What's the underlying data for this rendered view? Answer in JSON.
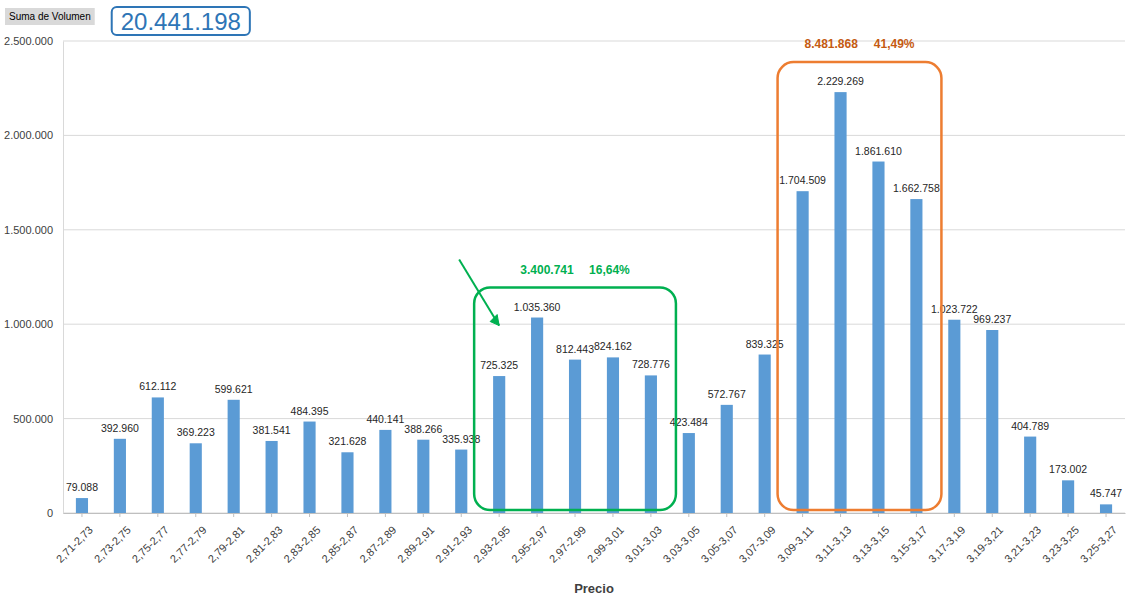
{
  "chart_data": {
    "type": "bar",
    "field_label": "Suma de Volumen",
    "title": "20.441.198",
    "x_label": "Precio",
    "categories": [
      "2,71-2,73",
      "2,73-2,75",
      "2,75-2,77",
      "2,77-2,79",
      "2,79-2,81",
      "2,81-2,83",
      "2,83-2,85",
      "2,85-2,87",
      "2,87-2,89",
      "2,89-2,91",
      "2,91-2,93",
      "2,93-2,95",
      "2,95-2,97",
      "2,97-2,99",
      "2,99-3,01",
      "3,01-3,03",
      "3,03-3,05",
      "3,05-3,07",
      "3,07-3,09",
      "3,09-3,11",
      "3,11-3,13",
      "3,13-3,15",
      "3,15-3,17",
      "3,17-3,19",
      "3,19-3,21",
      "3,21-3,23",
      "3,23-3,25",
      "3,25-3,27"
    ],
    "values": [
      79088,
      392960,
      612112,
      369223,
      599621,
      381541,
      484395,
      321628,
      440141,
      388266,
      335938,
      725325,
      1035360,
      812443,
      824162,
      728776,
      423484,
      572767,
      839325,
      1704509,
      2229269,
      1861610,
      1662758,
      1023722,
      969237,
      404789,
      173002,
      45747
    ],
    "value_labels": [
      "79.088",
      "392.960",
      "612.112",
      "369.223",
      "599.621",
      "381.541",
      "484.395",
      "321.628",
      "440.141",
      "388.266",
      "335.938",
      "725.325",
      "1.035.360",
      "812.443",
      "824.162",
      "728.776",
      "423.484",
      "572.767",
      "839.325",
      "1.704.509",
      "2.229.269",
      "1.861.610",
      "1.662.758",
      "1.023.722",
      "969.237",
      "404.789",
      "173.002",
      "45.747"
    ],
    "color": "#5b9bd5",
    "ylim": [
      0,
      2500000
    ],
    "yticks": [
      0,
      {
        "value": 500000,
        "label": "500.000"
      },
      {
        "value": 1000000,
        "label": "1.000.000"
      },
      {
        "value": 1500000,
        "label": "1.500.000"
      },
      {
        "value": 2000000,
        "label": "2.000.000"
      },
      {
        "value": 2500000,
        "label": "2.500.000"
      }
    ],
    "grid": true,
    "data_labels": true,
    "annotations": [
      {
        "texts": [
          "3.400.741",
          "16,64%"
        ],
        "color": "#00b050",
        "from": "2,93-2,95",
        "to": "3,01-3,03"
      },
      {
        "texts": [
          "8.481.868",
          "41,49%"
        ],
        "color": "#c55a11",
        "from": "3,09-3,11",
        "to": "3,15-3,17"
      }
    ]
  }
}
